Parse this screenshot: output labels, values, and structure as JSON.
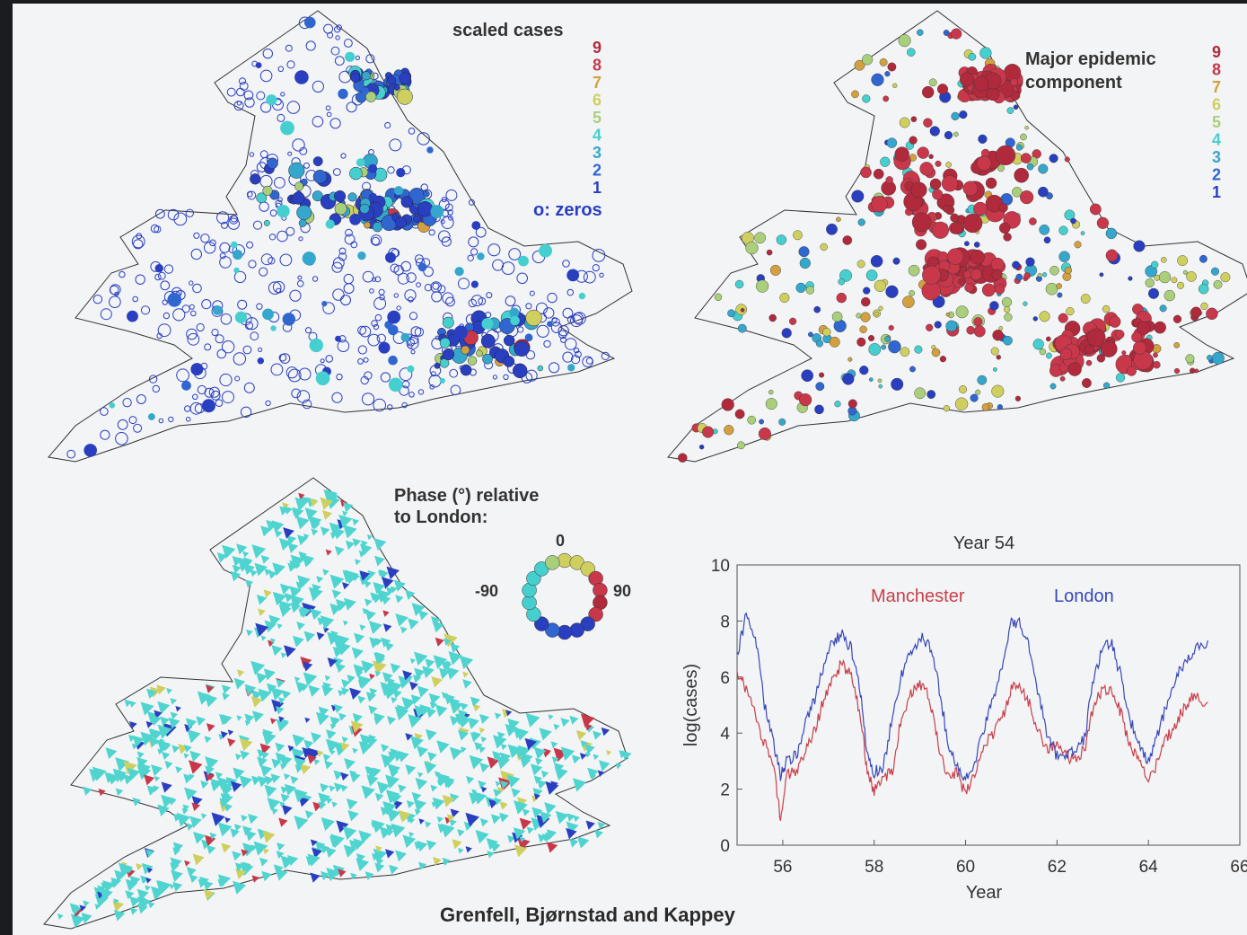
{
  "panels": {
    "scaled": {
      "title": "scaled cases",
      "scale": [
        "9",
        "8",
        "7",
        "6",
        "5",
        "4",
        "3",
        "2",
        "1"
      ],
      "zeros_label": "o: zeros"
    },
    "major": {
      "title_line1": "Major epidemic",
      "title_line2": "component",
      "scale": [
        "9",
        "8",
        "7",
        "6",
        "5",
        "4",
        "3",
        "2",
        "1"
      ]
    },
    "phase": {
      "title_line1": "Phase (°) relative",
      "title_line2": "to London:",
      "label_top": "0",
      "label_left": "-90",
      "label_right": "90"
    }
  },
  "palette": {
    "level1": "#2a3fc0",
    "level2": "#2f66cf",
    "level3": "#35a7cc",
    "level4": "#45cfcf",
    "level5": "#a9cf7a",
    "level6": "#cfcf60",
    "level7": "#d3a040",
    "level8": "#c8374a",
    "level9": "#b02a3c",
    "phase_main": "#4fd4d0"
  },
  "credit": "Grenfell, Bjørnstad and Kappey",
  "chart_data": {
    "type": "line",
    "title": "Year 54",
    "xlabel": "Year",
    "ylabel": "log(cases)",
    "xlim": [
      55,
      66
    ],
    "ylim": [
      0,
      10
    ],
    "xticks": [
      "56",
      "58",
      "60",
      "62",
      "64",
      "66"
    ],
    "yticks": [
      "0",
      "2",
      "4",
      "6",
      "8",
      "10"
    ],
    "series": [
      {
        "name": "Manchester",
        "color": "#c8404a",
        "x": [
          55.0,
          55.2,
          55.4,
          55.6,
          55.8,
          55.95,
          56.1,
          56.3,
          56.5,
          56.7,
          56.9,
          57.1,
          57.3,
          57.5,
          57.7,
          57.85,
          58.0,
          58.2,
          58.4,
          58.6,
          58.8,
          59.0,
          59.2,
          59.4,
          59.6,
          59.8,
          60.0,
          60.2,
          60.4,
          60.6,
          60.8,
          61.0,
          61.2,
          61.4,
          61.6,
          61.8,
          62.0,
          62.2,
          62.4,
          62.6,
          62.8,
          63.0,
          63.2,
          63.4,
          63.6,
          63.8,
          64.0,
          64.2,
          64.4,
          64.6,
          64.8,
          65.0,
          65.3
        ],
        "y": [
          6.1,
          5.6,
          4.6,
          3.6,
          3.0,
          0.9,
          2.6,
          2.5,
          3.4,
          4.1,
          5.2,
          6.0,
          6.5,
          6.0,
          4.6,
          2.6,
          1.9,
          2.4,
          2.7,
          4.6,
          5.4,
          5.7,
          5.4,
          3.6,
          2.4,
          2.6,
          1.8,
          2.6,
          3.5,
          4.0,
          4.5,
          5.6,
          5.6,
          5.0,
          4.1,
          3.4,
          3.6,
          3.2,
          3.0,
          3.4,
          5.0,
          5.6,
          5.5,
          4.7,
          3.5,
          3.2,
          2.2,
          3.0,
          3.8,
          4.3,
          5.0,
          5.3,
          5.1
        ]
      },
      {
        "name": "London",
        "color": "#3848b8",
        "x": [
          55.0,
          55.2,
          55.4,
          55.6,
          55.8,
          55.95,
          56.1,
          56.3,
          56.5,
          56.7,
          56.9,
          57.1,
          57.3,
          57.5,
          57.7,
          57.85,
          58.0,
          58.2,
          58.4,
          58.6,
          58.8,
          59.0,
          59.2,
          59.4,
          59.6,
          59.8,
          60.0,
          60.2,
          60.4,
          60.6,
          60.8,
          61.0,
          61.2,
          61.4,
          61.6,
          61.8,
          62.0,
          62.2,
          62.4,
          62.6,
          62.8,
          63.0,
          63.2,
          63.4,
          63.6,
          63.8,
          64.0,
          64.2,
          64.4,
          64.6,
          64.8,
          65.0,
          65.3
        ],
        "y": [
          6.8,
          8.2,
          7.4,
          5.0,
          3.6,
          2.5,
          3.0,
          3.2,
          4.4,
          5.2,
          6.5,
          7.3,
          7.5,
          7.0,
          5.4,
          3.2,
          2.6,
          2.8,
          4.6,
          6.1,
          6.8,
          7.4,
          7.2,
          5.8,
          3.8,
          2.8,
          2.3,
          3.0,
          4.1,
          5.2,
          6.5,
          7.9,
          7.9,
          7.0,
          5.4,
          3.8,
          3.2,
          3.3,
          3.3,
          3.8,
          6.0,
          7.0,
          7.2,
          6.0,
          4.5,
          3.5,
          3.0,
          3.9,
          5.0,
          6.0,
          6.4,
          7.0,
          7.3
        ]
      }
    ]
  }
}
